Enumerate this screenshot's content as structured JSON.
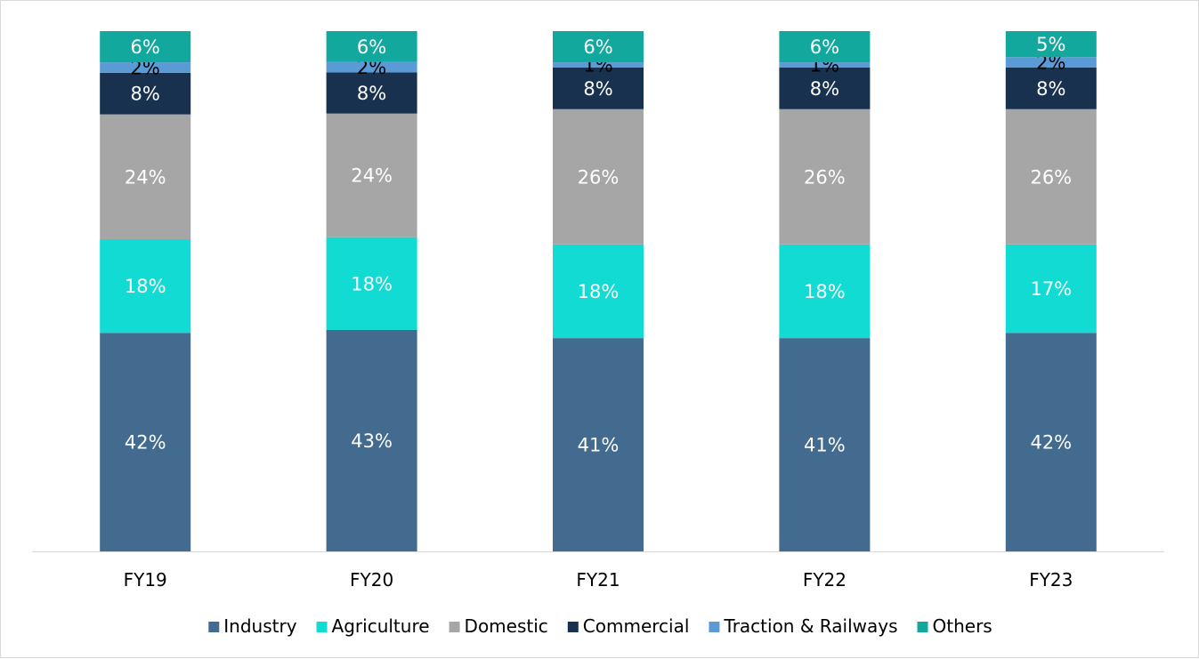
{
  "chart_data": {
    "type": "bar",
    "stacked": true,
    "title": "",
    "xlabel": "",
    "ylabel": "",
    "ylim": [
      0,
      100
    ],
    "grid": false,
    "legend_position": "bottom",
    "value_format": "percent",
    "categories": [
      "FY19",
      "FY20",
      "FY21",
      "FY22",
      "FY23"
    ],
    "series": [
      {
        "name": "Industry",
        "color": "#426b8f",
        "label_color": "#ffffff",
        "values": [
          42,
          43,
          41,
          41,
          42
        ]
      },
      {
        "name": "Agriculture",
        "color": "#12dbd3",
        "label_color": "#ffffff",
        "values": [
          18,
          18,
          18,
          18,
          17
        ]
      },
      {
        "name": "Domestic",
        "color": "#a6a6a6",
        "label_color": "#ffffff",
        "values": [
          24,
          24,
          26,
          26,
          26
        ]
      },
      {
        "name": "Commercial",
        "color": "#17314f",
        "label_color": "#ffffff",
        "values": [
          8,
          8,
          8,
          8,
          8
        ]
      },
      {
        "name": "Traction & Railways",
        "color": "#5b9bd5",
        "label_color": "#000000",
        "values": [
          2,
          2,
          1,
          1,
          2
        ]
      },
      {
        "name": "Others",
        "color": "#13a89e",
        "label_color": "#ffffff",
        "values": [
          6,
          6,
          6,
          6,
          5
        ]
      }
    ]
  }
}
